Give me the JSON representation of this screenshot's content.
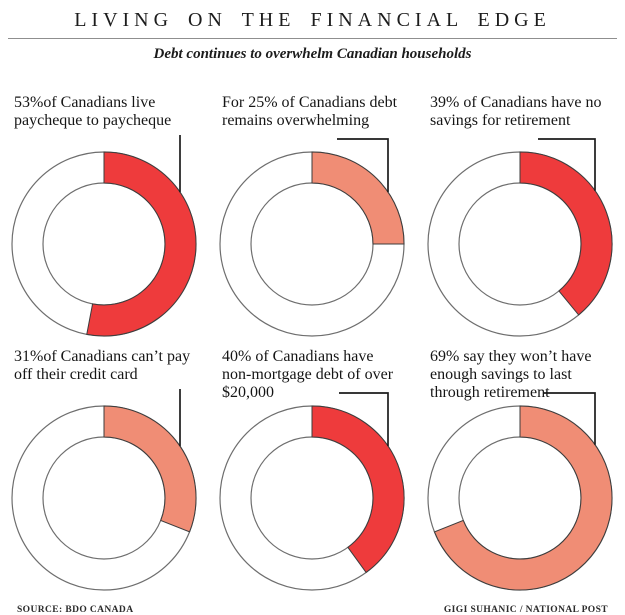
{
  "header": {
    "title": "LIVING ON THE FINANCIAL EDGE",
    "subtitle": "Debt continues to overwhelm Canadian households"
  },
  "footer": {
    "source": "SOURCE: BDO CANADA",
    "credit": "GIGI SUHANIC / NATIONAL POST"
  },
  "colors": {
    "red": "#ee3b3c",
    "salmon": "#f08d75",
    "ring_fill": "#ffffff",
    "ring_outline": "#6e6e6e",
    "segment_outline": "#3c3c3c",
    "callout": "#1c1c1c"
  },
  "chart_data": [
    {
      "type": "pie",
      "variant": "donut",
      "unit": "%",
      "value_pct": 53,
      "remainder_pct": 47,
      "series_color": "red",
      "callout": "vertical",
      "label": "53%of Canadians live paycheque to paycheque"
    },
    {
      "type": "pie",
      "variant": "donut",
      "unit": "%",
      "value_pct": 25,
      "remainder_pct": 75,
      "series_color": "salmon",
      "callout": "elbow",
      "label": "For 25% of Canadians debt remains overwhelming"
    },
    {
      "type": "pie",
      "variant": "donut",
      "unit": "%",
      "value_pct": 39,
      "remainder_pct": 61,
      "series_color": "red",
      "callout": "elbow",
      "label": "39% of Canadians have no savings for retirement"
    },
    {
      "type": "pie",
      "variant": "donut",
      "unit": "%",
      "value_pct": 31,
      "remainder_pct": 69,
      "series_color": "salmon",
      "callout": "vertical",
      "label": "31%of Canadians can’t pay off their credit card"
    },
    {
      "type": "pie",
      "variant": "donut",
      "unit": "%",
      "value_pct": 40,
      "remainder_pct": 60,
      "series_color": "red",
      "callout": "elbow",
      "label": "40% of Canadians have non-mortgage debt of over $20,000"
    },
    {
      "type": "pie",
      "variant": "donut",
      "unit": "%",
      "value_pct": 69,
      "remainder_pct": 31,
      "series_color": "salmon",
      "callout": "elbow",
      "label": "69% say they won’t have enough savings to last through retirement"
    }
  ]
}
